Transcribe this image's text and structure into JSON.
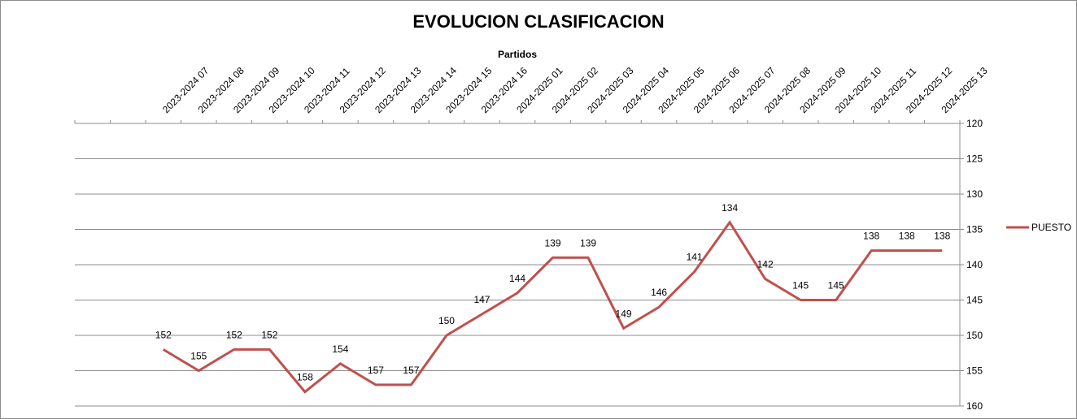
{
  "chart_data": {
    "type": "line",
    "title": "EVOLUCION CLASIFICACION",
    "xlabel": "Partidos",
    "ylabel": "",
    "categories": [
      "",
      "",
      "2023-2024 07",
      "2023-2024 08",
      "2023-2024 09",
      "2023-2024 10",
      "2023-2024 11",
      "2023-2024 12",
      "2023-2024 13",
      "2023-2024 14",
      "2023-2024 15",
      "2023-2024 16",
      "2024-2025 01",
      "2024-2025 02",
      "2024-2025 03",
      "2024-2025 04",
      "2024-2025 05",
      "2024-2025 06",
      "2024-2025 07",
      "2024-2025 08",
      "2024-2025 09",
      "2024-2025 10",
      "2024-2025 11",
      "2024-2025 12",
      "2024-2025 13"
    ],
    "series": [
      {
        "name": "PUESTO",
        "color": "#c0504d",
        "values": [
          null,
          null,
          152,
          155,
          152,
          152,
          158,
          154,
          157,
          157,
          150,
          147,
          144,
          139,
          139,
          149,
          146,
          141,
          134,
          142,
          145,
          145,
          138,
          138,
          138
        ]
      }
    ],
    "ylim": [
      120,
      160
    ],
    "y_reversed": true,
    "y_ticks": [
      120,
      125,
      130,
      135,
      140,
      145,
      150,
      155,
      160
    ],
    "y_axis_side": "right",
    "x_axis_position": "top",
    "grid": true,
    "legend_position": "right"
  }
}
